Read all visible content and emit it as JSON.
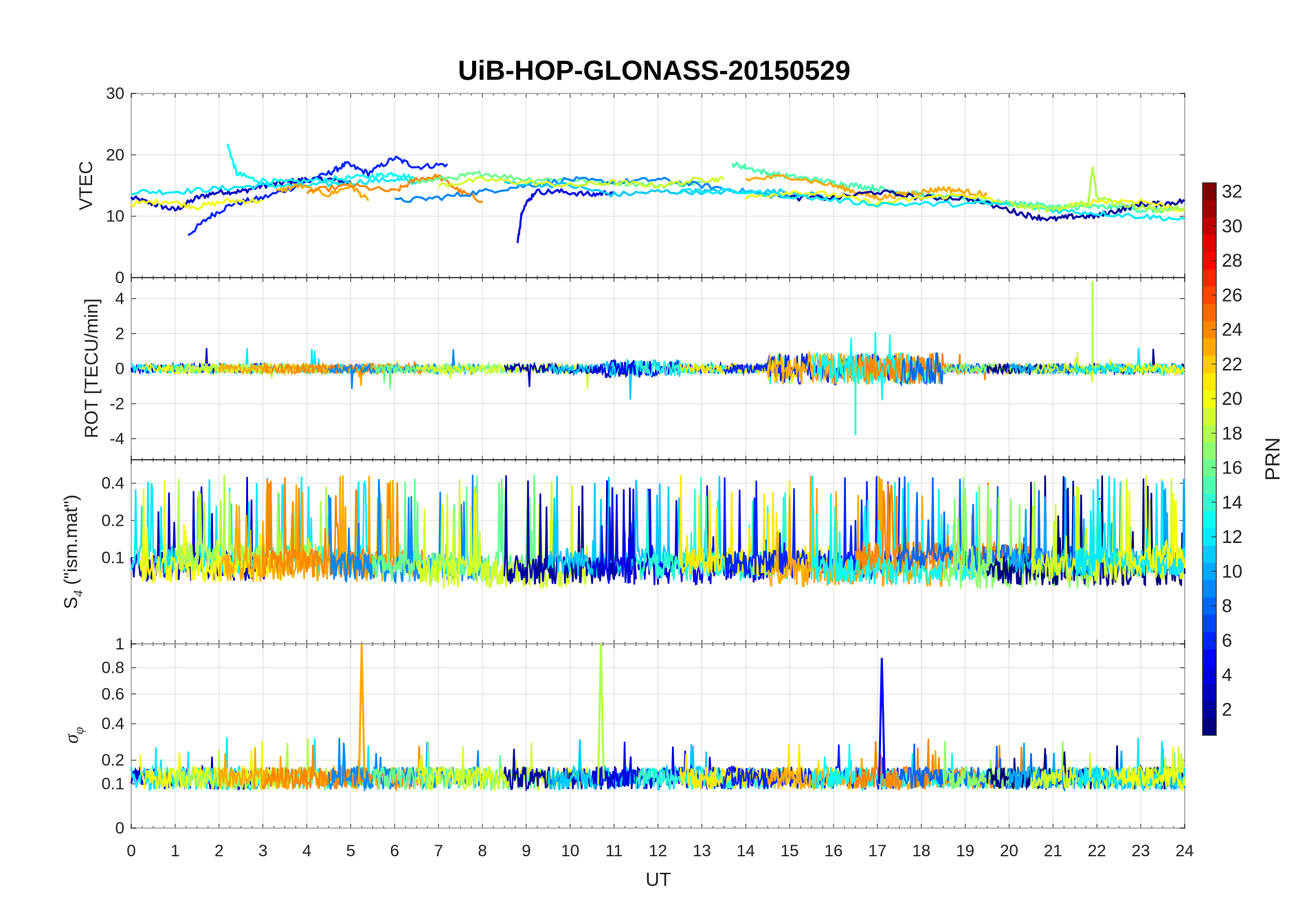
{
  "chart_data": {
    "type": "line",
    "title": "UiB-HOP-GLONASS-20150529",
    "xlabel": "UT",
    "xlim": [
      0,
      24
    ],
    "xticks": [
      "0",
      "1",
      "2",
      "3",
      "4",
      "5",
      "6",
      "7",
      "8",
      "9",
      "10",
      "11",
      "12",
      "13",
      "14",
      "15",
      "16",
      "17",
      "18",
      "19",
      "20",
      "21",
      "22",
      "23",
      "24"
    ],
    "colorbar": {
      "label": "PRN",
      "range": [
        1,
        32
      ],
      "ticks": [
        "2",
        "4",
        "6",
        "8",
        "10",
        "12",
        "14",
        "16",
        "18",
        "20",
        "22",
        "24",
        "26",
        "28",
        "30",
        "32"
      ],
      "colormap": "jet"
    },
    "panels": [
      {
        "id": "vtec",
        "ylabel": "VTEC",
        "ylim": [
          0,
          30
        ],
        "yticks": [
          "0",
          "10",
          "20",
          "30"
        ],
        "series": [
          {
            "prn": 3,
            "x": [
              0.0,
              0.5,
              1.0,
              1.5,
              2.0,
              2.5,
              3.0,
              3.5,
              4.0,
              4.5,
              5.0
            ],
            "y": [
              13,
              12,
              11,
              13,
              14,
              14,
              15,
              15.5,
              16,
              16,
              15.5
            ]
          },
          {
            "prn": 6,
            "x": [
              1.3,
              1.8,
              2.3,
              3.0,
              3.8,
              4.5,
              4.9,
              5.4,
              6.0,
              6.5,
              7.2
            ],
            "y": [
              7,
              10,
              12,
              13,
              15,
              17,
              18.5,
              17,
              19.5,
              18,
              18.5
            ]
          },
          {
            "prn": 13,
            "x": [
              2.2,
              2.4,
              2.8,
              3.5,
              4.5,
              5.5,
              6.0,
              6.5
            ],
            "y": [
              21.5,
              17,
              16,
              15.5,
              16,
              16.5,
              17,
              16
            ]
          },
          {
            "prn": 12,
            "x": [
              0.0,
              1.0,
              2.0,
              3.0,
              4.0,
              5.0,
              6.0,
              6.5
            ],
            "y": [
              14,
              14,
              14.5,
              15,
              15,
              15.5,
              16,
              15.5
            ]
          },
          {
            "prn": 20,
            "x": [
              0.0,
              0.8,
              1.5,
              2.2,
              3.0
            ],
            "y": [
              12,
              12.5,
              11.5,
              12.5,
              12.5
            ]
          },
          {
            "prn": 23,
            "x": [
              3.3,
              3.8,
              4.5,
              5.0,
              5.4
            ],
            "y": [
              14,
              15,
              13.5,
              15,
              12.5
            ]
          },
          {
            "prn": 24,
            "x": [
              4.0,
              5.0,
              6.0,
              6.5,
              7.0,
              7.5,
              8.0
            ],
            "y": [
              14,
              15,
              14,
              16,
              16.5,
              14,
              12.5
            ]
          },
          {
            "prn": 16,
            "x": [
              6.5,
              7.5,
              8.0,
              9.0,
              10.0,
              11.0,
              12.0,
              13.0
            ],
            "y": [
              15.5,
              16.5,
              17,
              16,
              16,
              15.5,
              15,
              15.5
            ]
          },
          {
            "prn": 4,
            "x": [
              8.8,
              8.9,
              9.2,
              9.8,
              10.5,
              11.0
            ],
            "y": [
              5.5,
              11,
              14,
              14,
              13.5,
              14
            ]
          },
          {
            "prn": 9,
            "x": [
              6.0,
              7.0,
              8.0,
              9.0,
              10.0,
              11.0,
              12.0,
              13.0,
              14.0,
              15.0
            ],
            "y": [
              12.5,
              13,
              14,
              15,
              16,
              15.5,
              16,
              15,
              14,
              13
            ]
          },
          {
            "prn": 11,
            "x": [
              8.5,
              10.0,
              11.0,
              12.0,
              13.0,
              14.0,
              15.0,
              16.0
            ],
            "y": [
              15.5,
              15,
              13.5,
              14,
              14,
              14,
              14,
              13
            ]
          },
          {
            "prn": 19,
            "x": [
              7.0,
              8.0,
              9.0,
              10.0,
              11.0,
              12.0,
              13.0,
              13.5
            ],
            "y": [
              15,
              16,
              15.5,
              15,
              15.5,
              15,
              16,
              16
            ]
          },
          {
            "prn": 15,
            "x": [
              13.7,
              14.0,
              14.5,
              15.0,
              15.5,
              16.0,
              16.5,
              17.0,
              17.5,
              18.0,
              18.5,
              19.0,
              19.5,
              20.0,
              20.5,
              21.0,
              21.5,
              22.0,
              22.5,
              23.0,
              23.5,
              24.0
            ],
            "y": [
              18.5,
              18,
              17,
              16.5,
              16,
              15.5,
              15,
              14.5,
              14,
              13.5,
              13,
              13,
              12.5,
              12,
              12,
              11.5,
              11.5,
              11.5,
              11.5,
              11,
              11,
              11
            ]
          },
          {
            "prn": 23,
            "x": [
              14.0,
              15.0,
              16.0,
              16.5,
              17.0,
              17.5,
              18.0,
              18.5,
              19.0,
              19.5
            ],
            "y": [
              16,
              16.5,
              15,
              14,
              13,
              13.5,
              14,
              14.5,
              14,
              13.5
            ]
          },
          {
            "prn": 2,
            "x": [
              15.0,
              16.0,
              17.0,
              18.0,
              19.0,
              20.0,
              20.5,
              21.0,
              21.5,
              22.0,
              22.5,
              23.0,
              23.5,
              24.0
            ],
            "y": [
              13,
              13,
              14,
              13,
              13,
              11,
              10,
              9.5,
              10,
              10,
              11,
              12,
              12,
              12.5
            ]
          },
          {
            "prn": 20,
            "x": [
              14.0,
              15.0,
              16.0,
              17.0,
              18.0,
              19.0,
              20.0,
              21.0,
              22.0,
              23.0,
              24.0
            ],
            "y": [
              13,
              14,
              13.5,
              12,
              13,
              13.5,
              12,
              11,
              12.5,
              12.5,
              11
            ]
          },
          {
            "prn": 12,
            "x": [
              12.5,
              14.0,
              15.5,
              17.0,
              18.5,
              20.0,
              21.0,
              22.0,
              23.0,
              24.0
            ],
            "y": [
              14,
              14,
              13,
              12,
              12,
              12,
              11,
              10.5,
              10,
              9.5
            ]
          },
          {
            "prn": 18,
            "x": [
              20.0,
              20.5,
              21.0,
              21.5,
              21.8,
              21.9,
              22.0,
              22.5,
              23.0,
              23.5,
              24.0
            ],
            "y": [
              12,
              11.5,
              11,
              12,
              12,
              18,
              13,
              12,
              11.5,
              11,
              11.5
            ]
          }
        ]
      },
      {
        "id": "rot",
        "ylabel": "ROT [TECU/min]",
        "ylim": [
          -5.2,
          5.2
        ],
        "yticks": [
          "-4",
          "-2",
          "0",
          "2",
          "4"
        ]
      },
      {
        "id": "s4",
        "ylabel": "S4 (\"ism.mat\")",
        "ylabel_main": "S",
        "ylabel_sub": "4",
        "ylabel_rest": " (\"ism.mat\")",
        "ylim": [
          0.02,
          0.62
        ],
        "yscale": "log-like",
        "yticks": [
          "0.1",
          "0.2",
          "0.4"
        ]
      },
      {
        "id": "sigma",
        "ylabel": "σφ",
        "ylabel_main": "σ",
        "ylabel_sub": "φ",
        "ylim": [
          0,
          1
        ],
        "yticks": [
          "0",
          "0.1",
          "0.2",
          "0.4",
          "0.6",
          "0.8",
          "1"
        ]
      }
    ],
    "annotations": [
      {
        "panel": "rot",
        "x": 21.9,
        "value": 5.0
      },
      {
        "panel": "rot",
        "x": 16.5,
        "value": -3.8
      },
      {
        "panel": "sigma",
        "x": 5.25,
        "value": 1.0
      },
      {
        "panel": "sigma",
        "x": 10.7,
        "value": 1.0
      },
      {
        "panel": "sigma",
        "x": 17.1,
        "value": 0.88
      }
    ]
  }
}
